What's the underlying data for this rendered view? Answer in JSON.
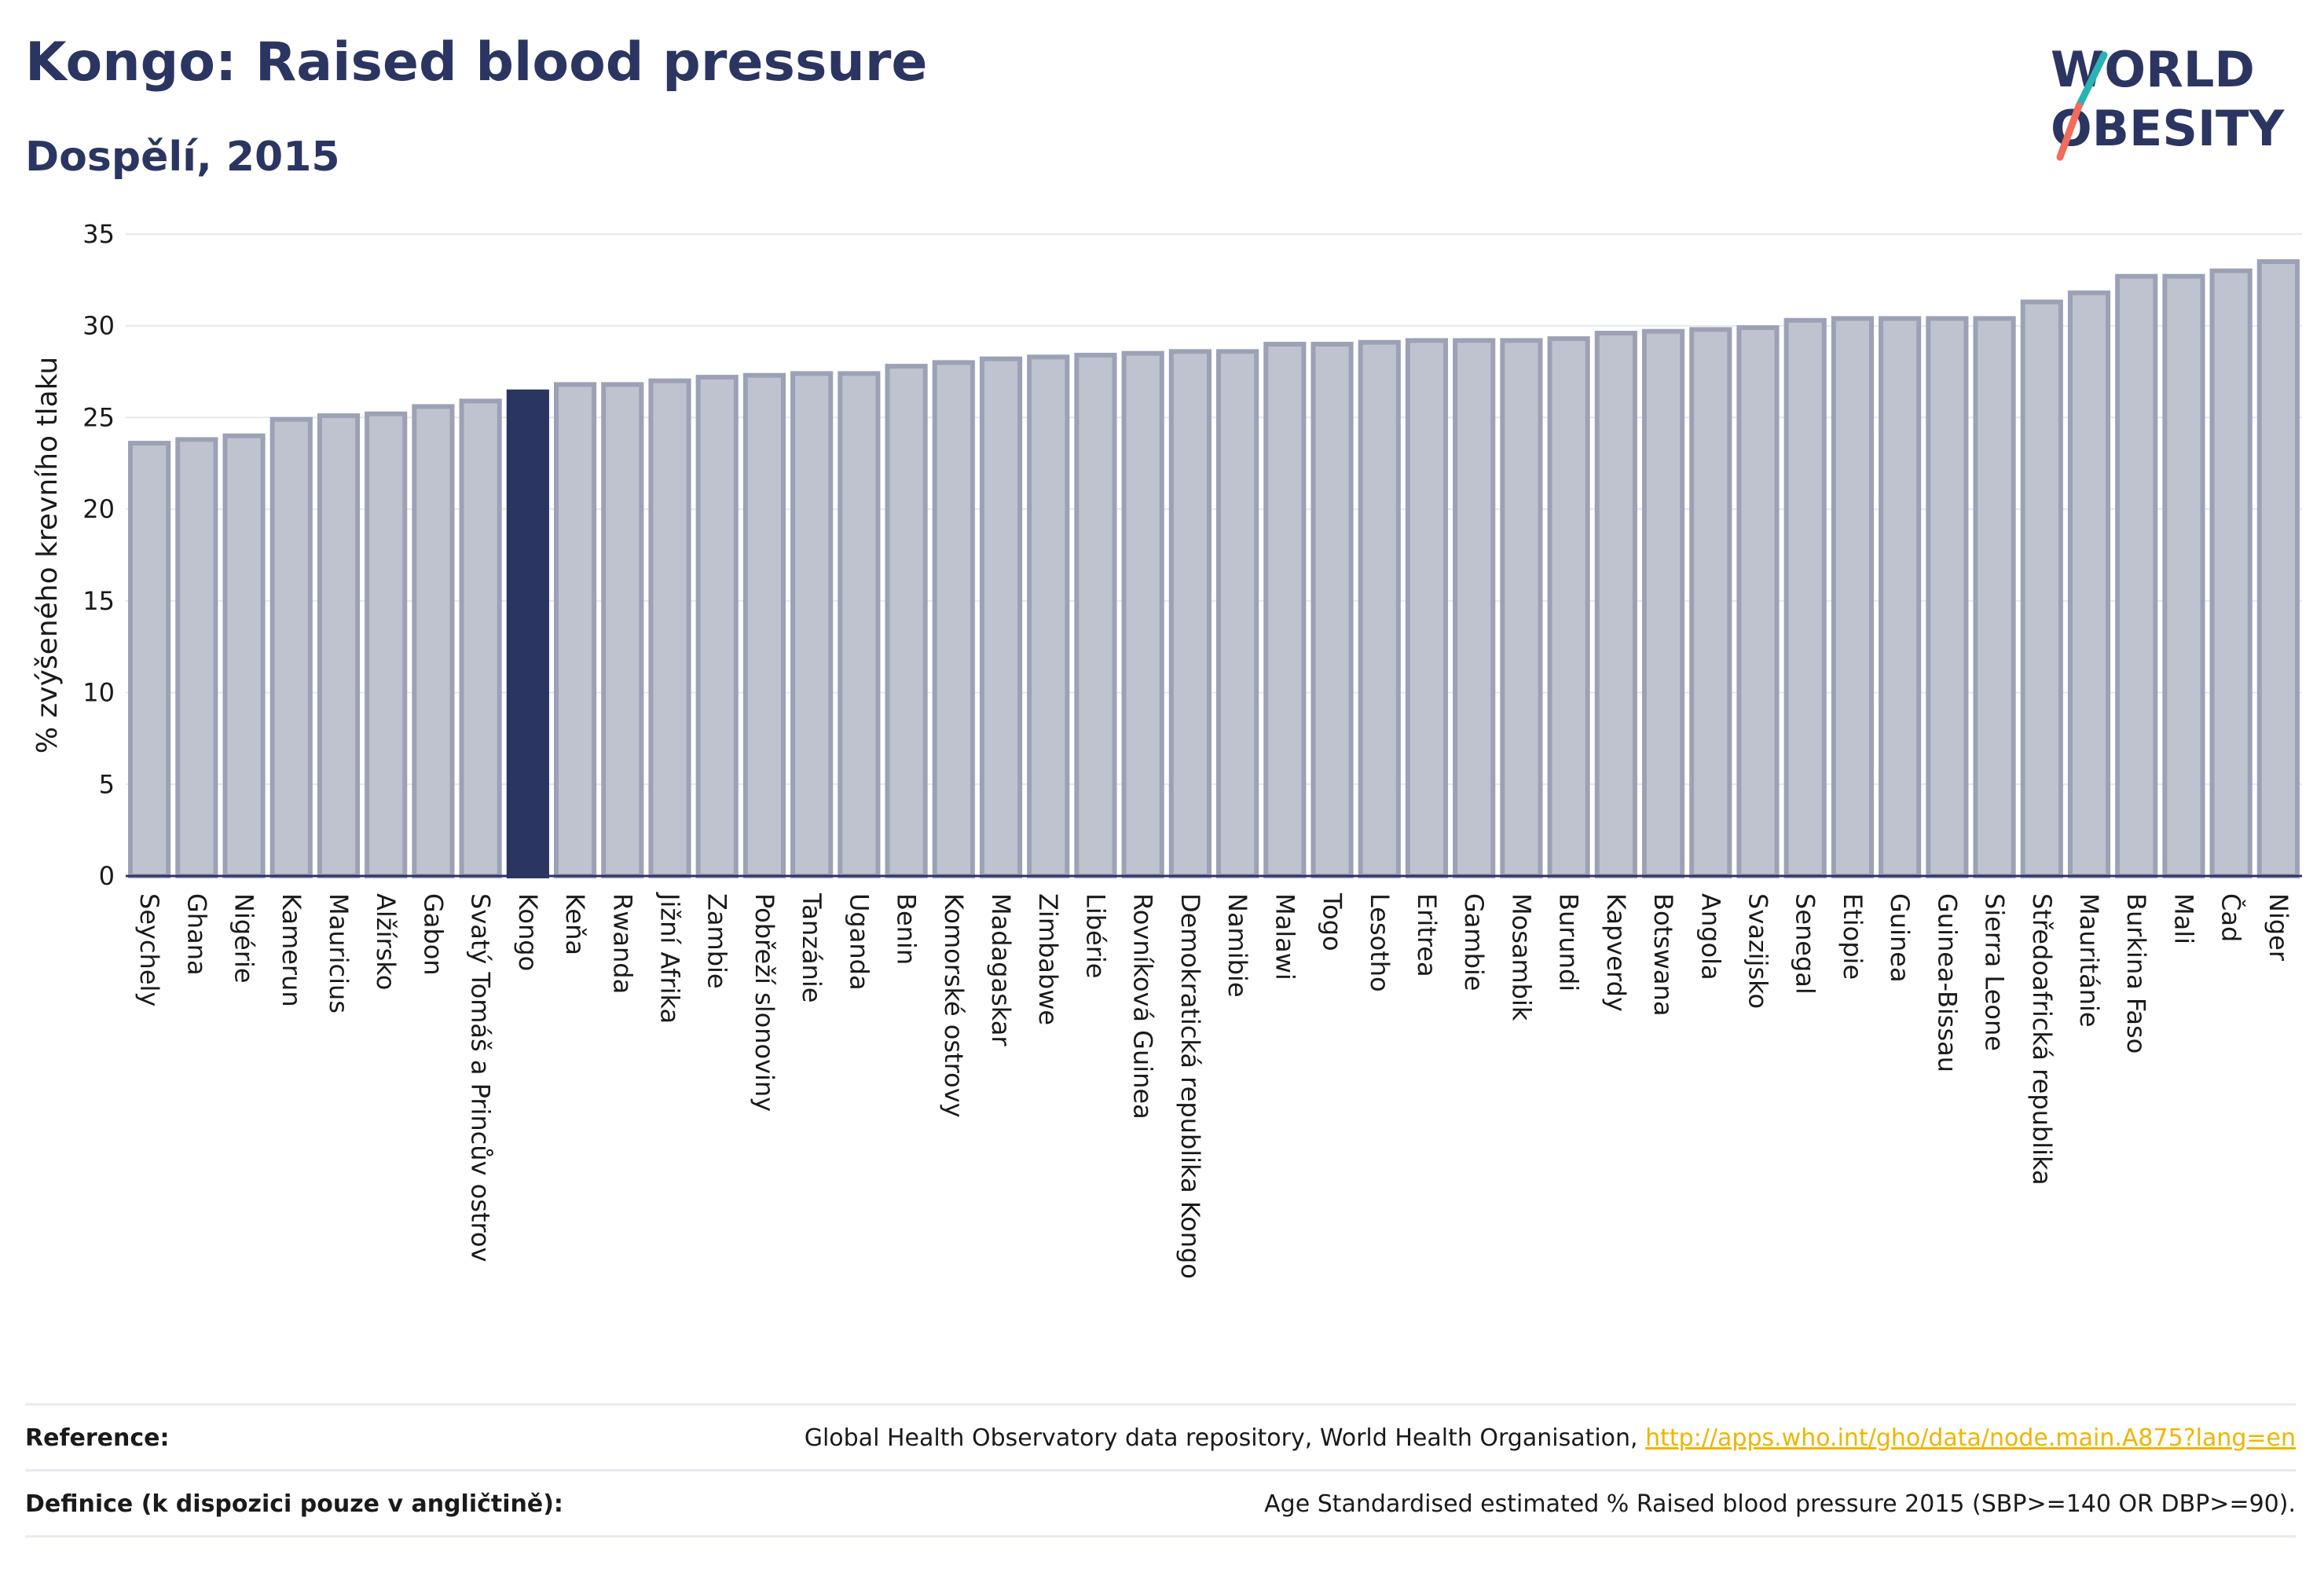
{
  "header": {
    "title": "Kongo: Raised blood pressure",
    "subtitle": "Dospělí, 2015",
    "logo_line1": "WORLD",
    "logo_line2": "OBESITY"
  },
  "colors": {
    "highlight": "#2b3561",
    "bar_fill": "#bfc3d0",
    "bar_stroke": "#9ca1b6",
    "grid": "#e6e8ee",
    "logo_teal": "#2ab3b5",
    "logo_coral": "#f26b5b",
    "link": "#f0b400"
  },
  "chart_data": {
    "type": "bar",
    "title": "Kongo: Raised blood pressure",
    "subtitle": "Dospělí, 2015",
    "ylabel": "% zvýšeného krevního tlaku",
    "ylim": [
      0,
      35
    ],
    "yticks": [
      0,
      5,
      10,
      15,
      20,
      25,
      30,
      35
    ],
    "grid": true,
    "highlight": "Kongo",
    "categories": [
      "Seychely",
      "Ghana",
      "Nigérie",
      "Kamerun",
      "Mauricius",
      "Alžírsko",
      "Gabon",
      "Svatý Tomáš a Princův ostrov",
      "Kongo",
      "Keňa",
      "Rwanda",
      "Jižní Afrika",
      "Zambie",
      "Pobřeží slonoviny",
      "Tanzánie",
      "Uganda",
      "Benin",
      "Komorské ostrovy",
      "Madagaskar",
      "Zimbabwe",
      "Libérie",
      "Rovníková Guinea",
      "Demokratická republika Kongo",
      "Namibie",
      "Malawi",
      "Togo",
      "Lesotho",
      "Eritrea",
      "Gambie",
      "Mosambik",
      "Burundi",
      "Kapverdy",
      "Botswana",
      "Angola",
      "Svazijsko",
      "Senegal",
      "Etiopie",
      "Guinea",
      "Guinea-Bissau",
      "Sierra Leone",
      "Středoafrická republika",
      "Mauritánie",
      "Burkina Faso",
      "Mali",
      "Čad",
      "Niger"
    ],
    "values": [
      23.6,
      23.8,
      24.0,
      24.9,
      25.1,
      25.2,
      25.6,
      25.9,
      26.4,
      26.8,
      26.8,
      27.0,
      27.2,
      27.3,
      27.4,
      27.4,
      27.8,
      28.0,
      28.2,
      28.3,
      28.4,
      28.5,
      28.6,
      28.6,
      29.0,
      29.0,
      29.1,
      29.2,
      29.2,
      29.2,
      29.3,
      29.6,
      29.7,
      29.8,
      29.9,
      30.3,
      30.4,
      30.4,
      30.4,
      30.4,
      31.3,
      31.8,
      32.7,
      32.7,
      33.0,
      33.5
    ]
  },
  "footer": {
    "reference_label": "Reference:",
    "reference_text": "Global Health Observatory data repository, World Health Organisation,",
    "reference_link": "http://apps.who.int/gho/data/node.main.A875?lang=en",
    "definition_label": "Definice (k dispozici pouze v angličtině):",
    "definition_text": "Age Standardised estimated % Raised blood pressure 2015 (SBP>=140 OR DBP>=90)."
  }
}
